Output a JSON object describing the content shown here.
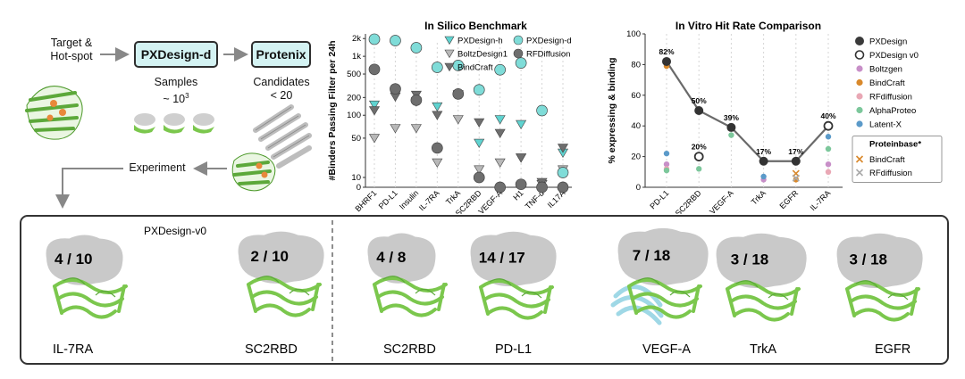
{
  "pipeline": {
    "input_label": "Target &\nHot-spot",
    "step1": "PXDesign-d",
    "step2": "Protenix",
    "samples_label": "Samples",
    "samples_value": "~ 10",
    "samples_exp": "3",
    "candidates_label": "Candidates",
    "candidates_value": "< 20",
    "experiment_label": "Experiment"
  },
  "chart_data": [
    {
      "type": "scatter",
      "title": "In Silico Benchmark",
      "ylabel": "#Binders Passing Filter per 24h",
      "xlabel": "",
      "y_scale": "symlog",
      "y_ticks": [
        0,
        10,
        50,
        100,
        200,
        500,
        1000,
        2000
      ],
      "y_tick_labels": [
        "0",
        "10",
        "50",
        "100",
        "200",
        "500",
        "1k",
        "2k"
      ],
      "categories": [
        "BHRF1",
        "PD-L1",
        "Insulin",
        "IL-7RA",
        "TrkA",
        "SC2RBD",
        "VEGF-A",
        "H1",
        "TNF-α",
        "IL17A"
      ],
      "series": [
        {
          "name": "PXDesign-h",
          "marker": "triangle-down",
          "color": "#5fd3d0",
          "values": [
            150,
            220,
            170,
            140,
            225,
            45,
            85,
            70,
            3,
            35
          ]
        },
        {
          "name": "BoltzDesign1",
          "marker": "triangle-down",
          "color": "#b8b8b8",
          "values": [
            50,
            60,
            60,
            25,
            85,
            18,
            25,
            30,
            3,
            18
          ]
        },
        {
          "name": "BindCraft",
          "marker": "triangle-down",
          "color": "#6e6e6e",
          "values": [
            120,
            205,
            220,
            100,
            220,
            75,
            55,
            30,
            5,
            40
          ]
        },
        {
          "name": "PXDesign-d",
          "marker": "circle",
          "color": "#7fdcd8",
          "values": [
            1950,
            1850,
            1400,
            650,
            700,
            270,
            590,
            770,
            120,
            15
          ]
        },
        {
          "name": "RFDiffusion",
          "marker": "circle",
          "color": "#6e6e6e",
          "values": [
            600,
            280,
            180,
            40,
            230,
            10,
            0,
            3,
            0,
            0
          ]
        }
      ],
      "legend": "top-right"
    },
    {
      "type": "line",
      "title": "In Vitro Hit Rate Comparison",
      "ylabel": "% expressing & binding",
      "ylim": [
        0,
        100
      ],
      "y_ticks": [
        0,
        20,
        40,
        60,
        80,
        100
      ],
      "categories": [
        "PD-L1",
        "SC2RBD",
        "VEGF-A",
        "TrkA",
        "EGFR",
        "IL-7RA"
      ],
      "series": [
        {
          "name": "PXDesign",
          "marker": "circle",
          "color": "#3a3a3a",
          "values": [
            82,
            50,
            39,
            17,
            17,
            null
          ]
        },
        {
          "name": "PXDesign v0",
          "marker": "circle-open",
          "color": "#3a3a3a",
          "values": [
            null,
            20,
            null,
            null,
            null,
            40
          ]
        },
        {
          "name": "Boltzgen",
          "marker": "circle",
          "color": "#c88fc8",
          "values": [
            15,
            null,
            null,
            5,
            null,
            15
          ]
        },
        {
          "name": "BindCraft",
          "marker": "circle",
          "color": "#d9892c",
          "values": [
            79,
            null,
            null,
            null,
            5,
            null
          ]
        },
        {
          "name": "RFdiffusion",
          "marker": "circle",
          "color": "#e9a8b5",
          "values": [
            12,
            null,
            null,
            null,
            null,
            10
          ]
        },
        {
          "name": "AlphaProteo",
          "marker": "circle",
          "color": "#7cc79b",
          "values": [
            11,
            12,
            34,
            null,
            null,
            25
          ]
        },
        {
          "name": "Latent-X",
          "marker": "circle",
          "color": "#5b9ac9",
          "values": [
            22,
            null,
            null,
            7,
            null,
            33
          ]
        }
      ],
      "point_labels": [
        {
          "category": "PD-L1",
          "text": "82%",
          "value": 82
        },
        {
          "category": "SC2RBD",
          "text": "50%",
          "value": 50
        },
        {
          "category": "SC2RBD",
          "text": "20%",
          "value": 20
        },
        {
          "category": "VEGF-A",
          "text": "39%",
          "value": 39
        },
        {
          "category": "TrkA",
          "text": "17%",
          "value": 17
        },
        {
          "category": "EGFR",
          "text": "17%",
          "value": 17
        },
        {
          "category": "IL-7RA",
          "text": "40%",
          "value": 40
        }
      ],
      "proteinbase": {
        "title": "Proteinbase*",
        "series": [
          {
            "name": "BindCraft",
            "marker": "x",
            "color": "#d9892c",
            "values": [
              null,
              null,
              null,
              null,
              9,
              null
            ]
          },
          {
            "name": "RFdiffusion",
            "marker": "x",
            "color": "#aaaaaa",
            "values": [
              null,
              null,
              null,
              null,
              6,
              null
            ]
          }
        ]
      },
      "legend": "right"
    }
  ],
  "results": {
    "v0_title": "PXDesign-v0",
    "items": [
      {
        "target": "IL-7RA",
        "hits": "4 / 10"
      },
      {
        "target": "SC2RBD",
        "hits": "2 / 10"
      },
      {
        "target": "SC2RBD",
        "hits": "4 / 8"
      },
      {
        "target": "PD-L1",
        "hits": "14 / 17"
      },
      {
        "target": "VEGF-A",
        "hits": "7 / 18"
      },
      {
        "target": "TrkA",
        "hits": "3 / 18"
      },
      {
        "target": "EGFR",
        "hits": "3 / 18"
      }
    ]
  },
  "colors": {
    "box_fill": "#d4f3f3",
    "protein_green": "#7bc74d",
    "target_grey": "#c9c9c9",
    "hotspot": "#e8883a",
    "helper_blue": "#9fd8e6"
  }
}
